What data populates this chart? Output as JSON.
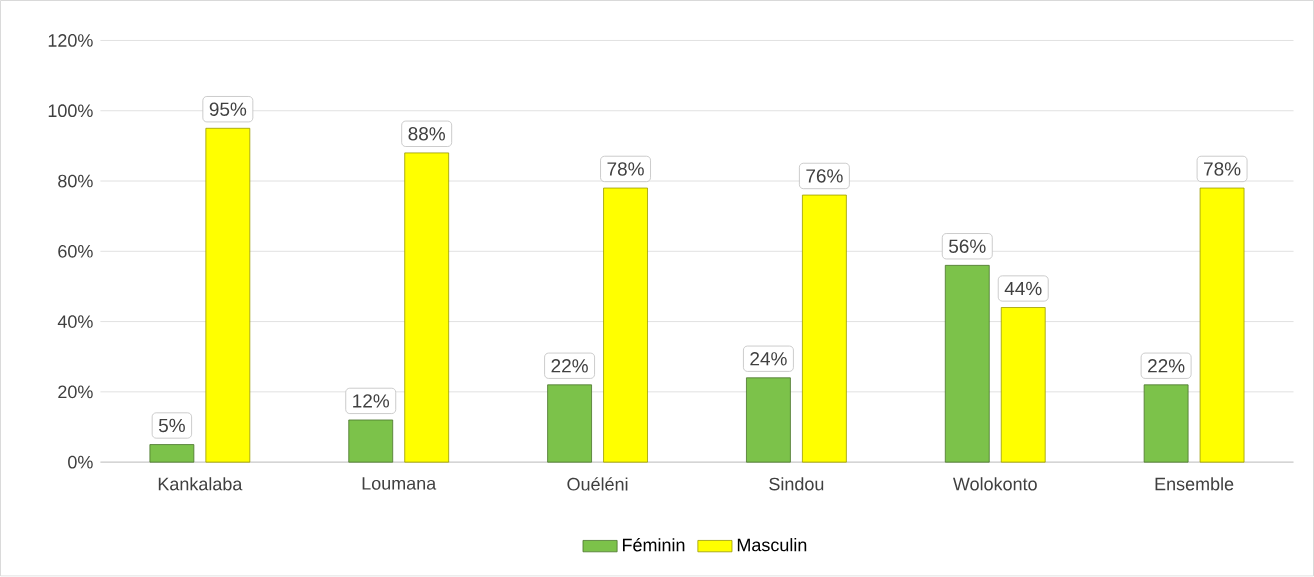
{
  "chart_data": {
    "type": "bar",
    "categories": [
      "Kankalaba",
      "Loumana",
      "Ouéléni",
      "Sindou",
      "Wolokonto",
      "Ensemble"
    ],
    "series": [
      {
        "name": "Féminin",
        "color": "#7cc24a",
        "values": [
          5,
          12,
          22,
          24,
          56,
          22
        ],
        "value_labels": [
          "5%",
          "12%",
          "22%",
          "24%",
          "56%",
          "22%"
        ]
      },
      {
        "name": "Masculin",
        "color": "#ffff00",
        "values": [
          95,
          88,
          78,
          76,
          44,
          78
        ],
        "value_labels": [
          "95%",
          "88%",
          "78%",
          "76%",
          "44%",
          "78%"
        ]
      }
    ],
    "ylim": [
      0,
      120
    ],
    "yticks": [
      {
        "value": 0,
        "label": "0%"
      },
      {
        "value": 20,
        "label": "20%"
      },
      {
        "value": 40,
        "label": "40%"
      },
      {
        "value": 60,
        "label": "60%"
      },
      {
        "value": 80,
        "label": "80%"
      },
      {
        "value": 100,
        "label": "100%"
      },
      {
        "value": 120,
        "label": "120%"
      }
    ],
    "grid": "y",
    "legend": "bottom"
  }
}
